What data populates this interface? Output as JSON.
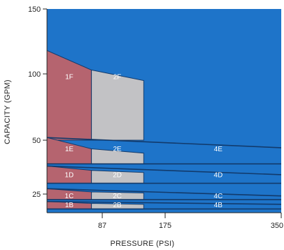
{
  "chart_data": {
    "type": "area",
    "xlabel": "PRESSURE (PSI)",
    "ylabel": "CAPACITY (GPM)",
    "x_ticks": [
      87,
      175,
      350
    ],
    "y_ticks": [
      25,
      50,
      100,
      150
    ],
    "xlim": [
      0,
      350
    ],
    "ylim": [
      15,
      150
    ],
    "colors": {
      "plot_bg": "#1e74c9",
      "band_line": "#123a6b",
      "zone_f": "#b5646f",
      "zone_gray": "#c2c2c5",
      "label": "#ffffff"
    },
    "zones": [
      {
        "label": "1F",
        "color": "zone_f",
        "points": [
          [
            0,
            50
          ],
          [
            0,
            118
          ],
          [
            70,
            103
          ],
          [
            70,
            50
          ]
        ]
      },
      {
        "label": "2F",
        "color": "zone_gray",
        "points": [
          [
            70,
            50
          ],
          [
            70,
            103
          ],
          [
            145,
            95
          ],
          [
            145,
            50
          ]
        ]
      },
      {
        "label": "1E",
        "color": "zone_f",
        "points": [
          [
            0,
            39
          ],
          [
            0,
            52
          ],
          [
            70,
            46
          ],
          [
            70,
            39
          ]
        ]
      },
      {
        "label": "2E",
        "color": "zone_gray",
        "points": [
          [
            70,
            39
          ],
          [
            70,
            46
          ],
          [
            145,
            44
          ],
          [
            145,
            39
          ]
        ]
      },
      {
        "label": "1D",
        "color": "zone_f",
        "points": [
          [
            0,
            30
          ],
          [
            0,
            38
          ],
          [
            70,
            36
          ],
          [
            70,
            30
          ]
        ]
      },
      {
        "label": "2D",
        "color": "zone_gray",
        "points": [
          [
            70,
            30
          ],
          [
            70,
            36
          ],
          [
            145,
            35
          ],
          [
            145,
            30
          ]
        ]
      },
      {
        "label": "1C",
        "color": "zone_f",
        "points": [
          [
            0,
            22
          ],
          [
            0,
            27.5
          ],
          [
            70,
            26
          ],
          [
            70,
            22
          ]
        ]
      },
      {
        "label": "2C",
        "color": "zone_gray",
        "points": [
          [
            70,
            22
          ],
          [
            70,
            26
          ],
          [
            145,
            25.5
          ],
          [
            145,
            22
          ]
        ]
      },
      {
        "label": "1B",
        "color": "zone_f",
        "points": [
          [
            0,
            17
          ],
          [
            0,
            21
          ],
          [
            70,
            20
          ],
          [
            70,
            17
          ]
        ]
      },
      {
        "label": "2B",
        "color": "zone_gray",
        "points": [
          [
            70,
            17
          ],
          [
            70,
            20
          ],
          [
            145,
            19.5
          ],
          [
            145,
            17
          ]
        ]
      }
    ],
    "blue_zones": [
      {
        "label": "4E",
        "x": 255,
        "y": 46
      },
      {
        "label": "4D",
        "x": 255,
        "y": 34
      },
      {
        "label": "4C",
        "x": 255,
        "y": 24
      },
      {
        "label": "4B",
        "x": 255,
        "y": 19.2
      }
    ],
    "band_lines": [
      [
        [
          0,
          52
        ],
        [
          350,
          46.5
        ]
      ],
      [
        [
          0,
          39
        ],
        [
          350,
          39
        ]
      ],
      [
        [
          0,
          38
        ],
        [
          350,
          34
        ]
      ],
      [
        [
          0,
          30
        ],
        [
          350,
          30
        ]
      ],
      [
        [
          0,
          27.5
        ],
        [
          350,
          24
        ]
      ],
      [
        [
          0,
          22
        ],
        [
          350,
          22
        ]
      ],
      [
        [
          0,
          21
        ],
        [
          350,
          19.5
        ]
      ],
      [
        [
          0,
          17
        ],
        [
          350,
          17
        ]
      ]
    ],
    "zone_labels": [
      {
        "label": "1F",
        "x": 35,
        "y": 98
      },
      {
        "label": "2F",
        "x": 108,
        "y": 98
      },
      {
        "label": "1E",
        "x": 35,
        "y": 46
      },
      {
        "label": "2E",
        "x": 108,
        "y": 46
      },
      {
        "label": "1D",
        "x": 35,
        "y": 34
      },
      {
        "label": "2D",
        "x": 108,
        "y": 34
      },
      {
        "label": "1C",
        "x": 35,
        "y": 24
      },
      {
        "label": "2C",
        "x": 108,
        "y": 24
      },
      {
        "label": "1B",
        "x": 35,
        "y": 19.2
      },
      {
        "label": "2B",
        "x": 108,
        "y": 19.2
      }
    ]
  }
}
